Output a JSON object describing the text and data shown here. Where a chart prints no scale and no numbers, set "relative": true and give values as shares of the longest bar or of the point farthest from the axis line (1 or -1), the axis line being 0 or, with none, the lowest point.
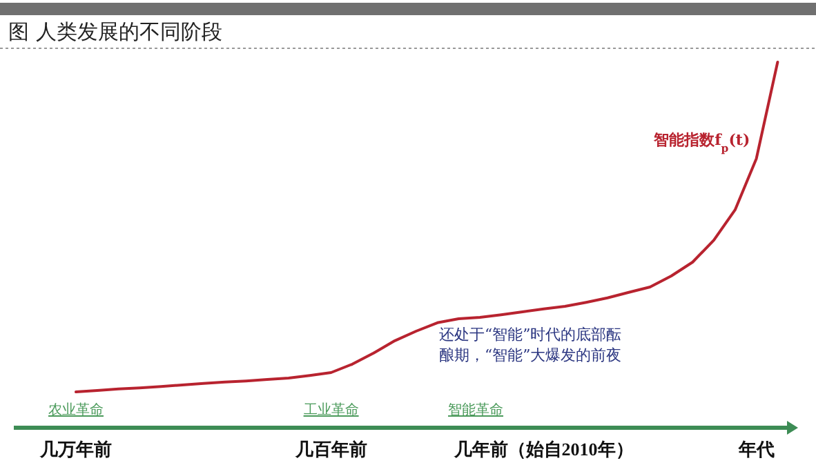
{
  "chart_data": {
    "type": "line",
    "title": "图 人类发展的不同阶段",
    "relative": true,
    "categories": [
      "几万年前",
      null,
      null,
      null,
      null,
      null,
      null,
      null,
      null,
      null,
      null,
      null,
      "几百年前",
      null,
      null,
      null,
      null,
      null,
      null,
      null,
      null,
      null,
      "几年前（始自2010年）",
      null,
      null,
      null,
      null,
      null,
      null,
      null,
      null,
      null,
      "年代",
      null
    ],
    "series": [
      {
        "name": "智能指数f$_{p}$(t)",
        "color": "#b8232f",
        "values": [
          0.098,
          0.102,
          0.106,
          0.109,
          0.113,
          0.117,
          0.121,
          0.125,
          0.128,
          0.132,
          0.136,
          0.143,
          0.151,
          0.174,
          0.204,
          0.238,
          0.264,
          0.287,
          0.298,
          0.302,
          0.309,
          0.317,
          0.325,
          0.332,
          0.343,
          0.355,
          0.37,
          0.385,
          0.415,
          0.453,
          0.513,
          0.596,
          0.736,
          1
        ]
      }
    ],
    "annotations": [
      "农业革命",
      "工业革命",
      "智能革命",
      "还处于“智能”时代的底部酝酿期，“智能”大爆发的前夜"
    ]
  }
}
